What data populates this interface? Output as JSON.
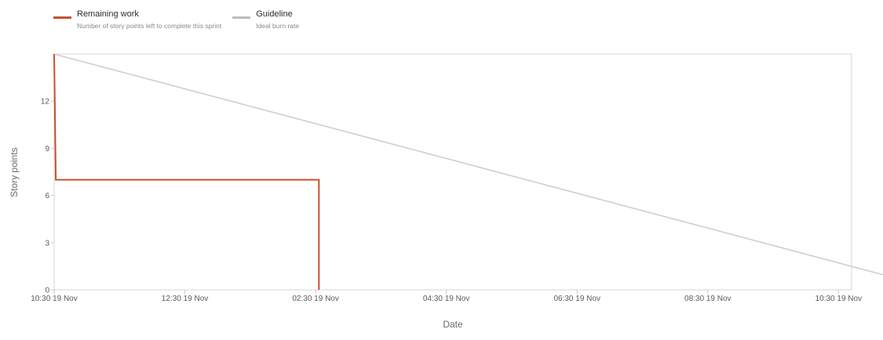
{
  "legend": {
    "items": [
      {
        "title": "Remaining work",
        "description": "Number of story points left to complete this sprint",
        "color": "#c8502e"
      },
      {
        "title": "Guideline",
        "description": "Ideal burn rate",
        "color": "#b8bcc6"
      }
    ]
  },
  "chart_data": {
    "type": "line",
    "xlabel": "Date",
    "ylabel": "Story points",
    "x_unit": "hours after 10:30 19 Nov",
    "xlim": [
      0,
      24.4
    ],
    "ylim": [
      0,
      15
    ],
    "x_ticks": [
      {
        "x": 0,
        "label": "10:30 19 Nov"
      },
      {
        "x": 4,
        "label": "12:30 19 Nov"
      },
      {
        "x": 8,
        "label": "02:30 19 Nov"
      },
      {
        "x": 12,
        "label": "04:30 19 Nov"
      },
      {
        "x": 16,
        "label": "06:30 19 Nov"
      },
      {
        "x": 20,
        "label": "08:30 19 Nov"
      },
      {
        "x": 24,
        "label": "10:30 19 Nov"
      }
    ],
    "y_ticks": [
      0,
      3,
      6,
      9,
      12
    ],
    "grid": false,
    "legend_position": "top-left",
    "series": [
      {
        "name": "Remaining work",
        "color": "#c8502e",
        "step": true,
        "points": [
          [
            0,
            15
          ],
          [
            0.05,
            7
          ],
          [
            8.1,
            7
          ],
          [
            8.1,
            0
          ]
        ]
      },
      {
        "name": "Guideline",
        "color": "#cfcfcf",
        "step": false,
        "points": [
          [
            0,
            15
          ],
          [
            27.1,
            0
          ]
        ]
      }
    ]
  }
}
